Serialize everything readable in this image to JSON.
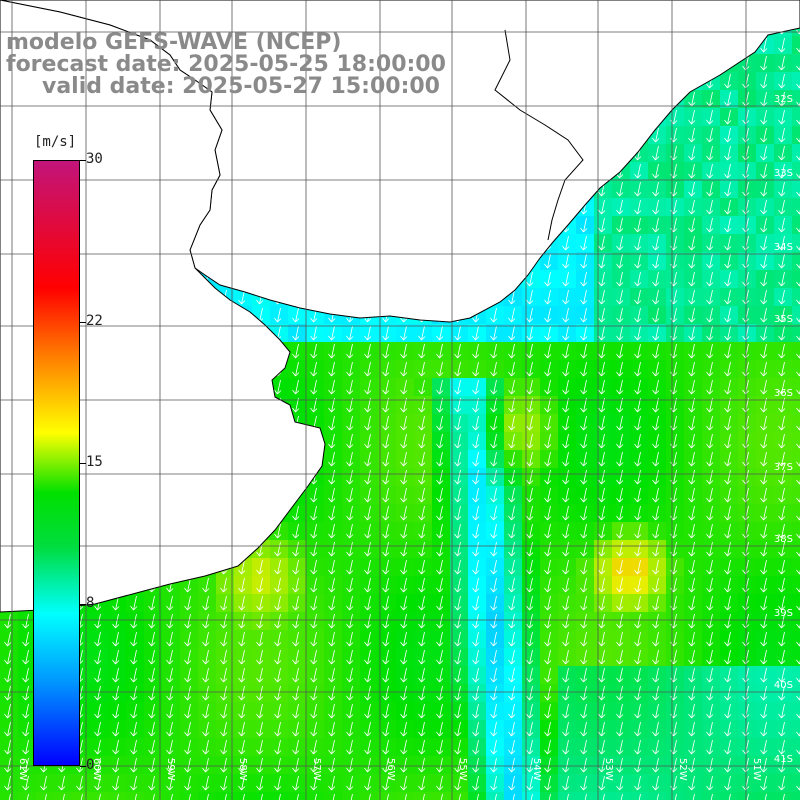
{
  "title": {
    "line1": "modelo GEFS-WAVE (NCEP)",
    "line2": "forecast date: 2025-05-25 18:00:00",
    "line3": "valid date: 2025-05-27 15:00:00"
  },
  "colorbar": {
    "units": "[m/s]",
    "ticks": [
      {
        "label": "30",
        "value": 30
      },
      {
        "label": "22",
        "value": 22
      },
      {
        "label": "15",
        "value": 15
      },
      {
        "label": "8",
        "value": 8
      },
      {
        "label": "0",
        "value": 0
      }
    ],
    "colors": [
      "#c2147a",
      "#ff0000",
      "#ff7a00",
      "#ffff00",
      "#00e000",
      "#00ffff",
      "#0099ff",
      "#0000ff"
    ]
  },
  "map": {
    "lon_labels": [
      "61W",
      "60W",
      "59W",
      "58W",
      "57W",
      "56W",
      "55W",
      "54W",
      "53W",
      "52W",
      "51W"
    ],
    "lat_labels": [
      "32S",
      "33S",
      "34S",
      "35S",
      "36S",
      "37S",
      "38S",
      "39S",
      "40S",
      "41S"
    ],
    "land_color": "#ffffff",
    "coast_color": "#000000",
    "grid_color": "#555555",
    "arrow_color": "#ffffff",
    "wind_direction": "from north (arrows pointing south)"
  }
}
